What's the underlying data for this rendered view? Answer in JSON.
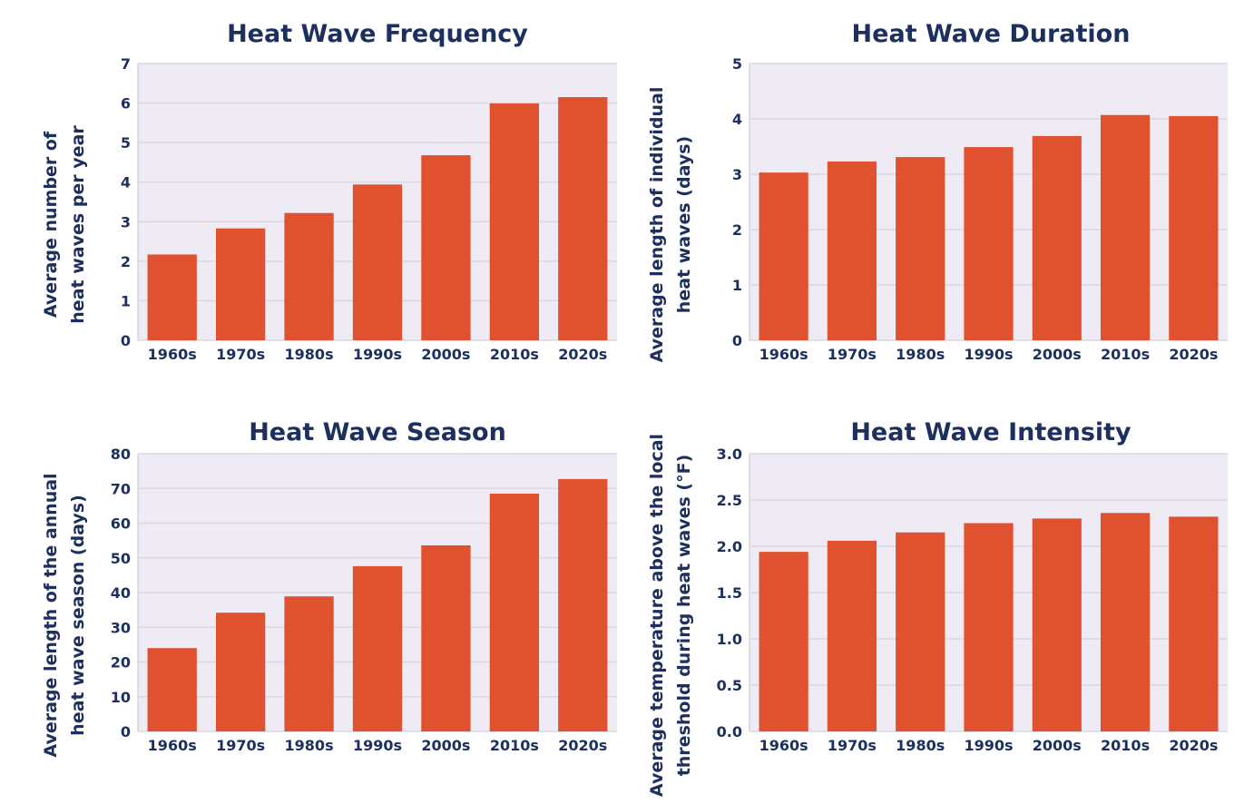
{
  "colors": {
    "bar": "#e0522f",
    "plot_background": "#eeebf5",
    "text": "#1c2f5e",
    "grid": "#dcd8e2"
  },
  "chart_data": [
    {
      "type": "bar",
      "title": "Heat Wave Frequency",
      "ylabel": [
        "Average number of",
        "heat waves per year"
      ],
      "xlabel": "",
      "categories": [
        "1960s",
        "1970s",
        "1980s",
        "1990s",
        "2000s",
        "2010s",
        "2020s"
      ],
      "values": [
        2.17,
        2.83,
        3.22,
        3.94,
        4.68,
        5.99,
        6.15
      ],
      "ylim": [
        0,
        7
      ],
      "yticks": [
        "0",
        "1",
        "2",
        "3",
        "4",
        "5",
        "6",
        "7"
      ],
      "grid": true
    },
    {
      "type": "bar",
      "title": "Heat Wave Duration",
      "ylabel": [
        "Average length of individual",
        "heat waves (days)"
      ],
      "xlabel": "",
      "categories": [
        "1960s",
        "1970s",
        "1980s",
        "1990s",
        "2000s",
        "2010s",
        "2020s"
      ],
      "values": [
        3.03,
        3.23,
        3.31,
        3.49,
        3.69,
        4.07,
        4.05
      ],
      "ylim": [
        0,
        5
      ],
      "yticks": [
        "0",
        "1",
        "2",
        "3",
        "4",
        "5"
      ],
      "grid": true
    },
    {
      "type": "bar",
      "title": "Heat Wave Season",
      "ylabel": [
        "Average length of the annual",
        "heat wave season (days)"
      ],
      "xlabel": "",
      "categories": [
        "1960s",
        "1970s",
        "1980s",
        "1990s",
        "2000s",
        "2010s",
        "2020s"
      ],
      "values": [
        24.0,
        34.2,
        38.9,
        47.6,
        53.6,
        68.5,
        72.7
      ],
      "ylim": [
        0,
        80
      ],
      "yticks": [
        "0",
        "10",
        "20",
        "30",
        "40",
        "50",
        "60",
        "70",
        "80"
      ],
      "grid": true
    },
    {
      "type": "bar",
      "title": "Heat Wave Intensity",
      "ylabel": [
        "Average temperature above the local",
        "threshold during heat waves (°F)"
      ],
      "xlabel": "",
      "categories": [
        "1960s",
        "1970s",
        "1980s",
        "1990s",
        "2000s",
        "2010s",
        "2020s"
      ],
      "values": [
        1.94,
        2.06,
        2.15,
        2.25,
        2.3,
        2.36,
        2.32
      ],
      "ylim": [
        0,
        3
      ],
      "yticks": [
        "0.0",
        "0.5",
        "1.0",
        "1.5",
        "2.0",
        "2.5",
        "3.0"
      ],
      "grid": true
    }
  ]
}
